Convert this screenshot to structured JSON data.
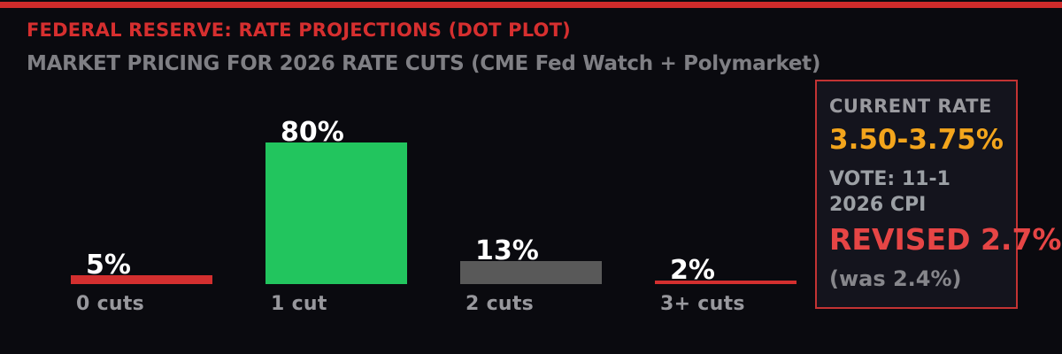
{
  "header": {
    "title": "FEDERAL RESERVE: RATE PROJECTIONS (DOT PLOT)",
    "subtitle": "MARKET PRICING FOR 2026 RATE CUTS (CME Fed Watch + Polymarket)"
  },
  "chart_data": {
    "type": "bar",
    "title": "FEDERAL RESERVE: RATE PROJECTIONS (DOT PLOT)",
    "subtitle": "MARKET PRICING FOR 2026 RATE CUTS (CME Fed Watch + Polymarket)",
    "categories": [
      "0 cuts",
      "1 cut",
      "2 cuts",
      "3+ cuts"
    ],
    "values": [
      5,
      80,
      13,
      2
    ],
    "value_labels": [
      "5%",
      "80%",
      "13%",
      "2%"
    ],
    "bar_colors": [
      "#d32f2f",
      "#22c55e",
      "#595959",
      "#d32f2f"
    ],
    "xlabel": "",
    "ylabel": "",
    "ylim": [
      0,
      100
    ],
    "grid": false,
    "legend": "none"
  },
  "info_panel": {
    "label": "CURRENT RATE",
    "current_rate": "3.50-3.75%",
    "vote": "VOTE: 11-1",
    "cpi_year_label": "2026 CPI",
    "cpi_revised": "REVISED 2.7%",
    "cpi_previous": "(was 2.4%)"
  },
  "colors": {
    "background": "#0a0a0f",
    "accent_strip": "#cf2b2b",
    "title_red": "#d62f2f",
    "subtitle_gray": "#7f7f84",
    "bar_red": "#d32f2f",
    "bar_green": "#22c55e",
    "bar_gray": "#595959",
    "value_label_white": "#ffffff",
    "category_gray": "#98989d",
    "panel_background": "#14141d",
    "panel_border_red": "#c33333",
    "rate_orange": "#f3a51c",
    "revised_red": "#e64545"
  }
}
